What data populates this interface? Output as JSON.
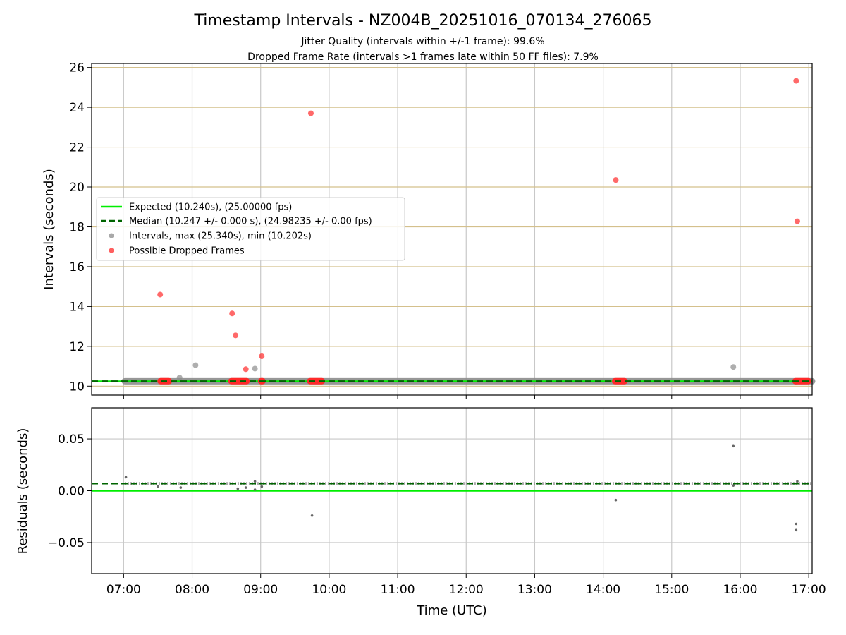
{
  "figure": {
    "title": "Timestamp Intervals - NZ004B_20251016_070134_276065",
    "subtitle_1": "Jitter Quality (intervals within +/-1 frame): 99.6%",
    "subtitle_2": "Dropped Frame Rate (intervals >1 frames late within 50 FF files): 7.9%"
  },
  "colors": {
    "expected": "#00ee00",
    "median": "#006400",
    "intervals": "#8c8c8c",
    "dropped": "#ff2a2a",
    "grid": "#c8c8c8",
    "hgrid_top": "#d4c08c"
  },
  "chart_data": [
    {
      "type": "scatter",
      "panel": "intervals",
      "title": "Timestamp Intervals - NZ004B_20251016_070134_276065",
      "xlabel": "",
      "ylabel": "Intervals (seconds)",
      "xlim": [
        "06:32",
        "17:03"
      ],
      "ylim": [
        9.55,
        26.2
      ],
      "yticks": [
        "10",
        "12",
        "14",
        "16",
        "18",
        "20",
        "22",
        "24",
        "26"
      ],
      "ytick_values": [
        10,
        12,
        14,
        16,
        18,
        20,
        22,
        24,
        26
      ],
      "grid": true,
      "legend_position": "center-left",
      "legend": [
        "Expected (10.240s), (25.00000 fps)",
        "Median (10.247 +/- 0.000 s), (24.98235 +/- 0.00 fps)",
        "Intervals, max (25.340s), min (10.202s)",
        "Possible Dropped Frames"
      ],
      "lines": [
        {
          "name": "Expected (10.240s), (25.00000 fps)",
          "y": 10.24,
          "style": "solid"
        },
        {
          "name": "Median (10.247 +/- 0.000 s), (24.98235 +/- 0.00 fps)",
          "y": 10.247,
          "style": "dashed"
        }
      ],
      "series": [
        {
          "name": "Intervals, max (25.340s), min (10.202s)",
          "band": {
            "x_start": "07:01",
            "x_end": "17:03",
            "y": 10.247
          },
          "points": [
            {
              "x": "07:49",
              "y": 10.43
            },
            {
              "x": "08:03",
              "y": 11.05
            },
            {
              "x": "08:55",
              "y": 10.88
            },
            {
              "x": "15:54",
              "y": 10.96
            },
            {
              "x": "16:49",
              "y": 10.21
            }
          ]
        },
        {
          "name": "Possible Dropped Frames",
          "points": [
            {
              "x": "07:32",
              "y": 14.6
            },
            {
              "x": "08:35",
              "y": 13.65
            },
            {
              "x": "08:38",
              "y": 12.55
            },
            {
              "x": "08:47",
              "y": 10.85
            },
            {
              "x": "09:01",
              "y": 11.5
            },
            {
              "x": "09:44",
              "y": 23.7
            },
            {
              "x": "14:11",
              "y": 20.35
            },
            {
              "x": "16:49",
              "y": 25.33
            },
            {
              "x": "16:50",
              "y": 18.28
            }
          ],
          "clusters": [
            {
              "x_start": "07:32",
              "x_end": "07:40",
              "y": 10.25
            },
            {
              "x_start": "08:34",
              "x_end": "08:48",
              "y": 10.25
            },
            {
              "x_start": "09:00",
              "x_end": "09:02",
              "y": 10.25
            },
            {
              "x_start": "09:43",
              "x_end": "09:54",
              "y": 10.25
            },
            {
              "x_start": "14:10",
              "x_end": "14:19",
              "y": 10.25
            },
            {
              "x_start": "16:48",
              "x_end": "17:00",
              "y": 10.25
            }
          ]
        }
      ]
    },
    {
      "type": "scatter",
      "panel": "residuals",
      "xlabel": "Time (UTC)",
      "ylabel": "Residuals (seconds)",
      "xlim": [
        "06:32",
        "17:03"
      ],
      "xticks": [
        "07:00",
        "08:00",
        "09:00",
        "10:00",
        "11:00",
        "12:00",
        "13:00",
        "14:00",
        "15:00",
        "16:00",
        "17:00"
      ],
      "ylim": [
        -0.08,
        0.08
      ],
      "yticks": [
        "−0.05",
        "0.00",
        "0.05"
      ],
      "ytick_values": [
        -0.05,
        0.0,
        0.05
      ],
      "grid": true,
      "lines": [
        {
          "name": "Expected",
          "y": 0.0,
          "style": "solid"
        },
        {
          "name": "Median",
          "y": 0.007,
          "style": "dashed"
        }
      ],
      "series": [
        {
          "name": "Residuals",
          "band": {
            "x_start": "07:01",
            "x_end": "17:03",
            "y": 0.007
          },
          "points": [
            {
              "x": "07:02",
              "y": 0.013
            },
            {
              "x": "07:30",
              "y": 0.004
            },
            {
              "x": "07:50",
              "y": 0.003
            },
            {
              "x": "08:40",
              "y": 0.002
            },
            {
              "x": "08:47",
              "y": 0.003
            },
            {
              "x": "08:55",
              "y": 0.001
            },
            {
              "x": "08:55",
              "y": 0.009
            },
            {
              "x": "09:01",
              "y": 0.004
            },
            {
              "x": "09:45",
              "y": -0.024
            },
            {
              "x": "14:11",
              "y": -0.009
            },
            {
              "x": "15:54",
              "y": 0.043
            },
            {
              "x": "15:54",
              "y": 0.005
            },
            {
              "x": "16:49",
              "y": -0.032
            },
            {
              "x": "16:49",
              "y": -0.038
            },
            {
              "x": "16:50",
              "y": 0.009
            }
          ]
        }
      ]
    }
  ]
}
